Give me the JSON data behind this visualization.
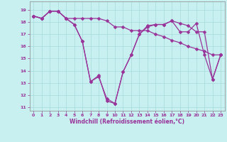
{
  "xlabel": "Windchill (Refroidissement éolien,°C)",
  "background_color": "#c8f0f0",
  "grid_color": "#a8dada",
  "line_color": "#993399",
  "markersize": 2.5,
  "linewidth": 0.9,
  "xlim": [
    -0.5,
    23.5
  ],
  "ylim": [
    10.7,
    19.7
  ],
  "yticks": [
    11,
    12,
    13,
    14,
    15,
    16,
    17,
    18,
    19
  ],
  "xticks": [
    0,
    1,
    2,
    3,
    4,
    5,
    6,
    7,
    8,
    9,
    10,
    11,
    12,
    13,
    14,
    15,
    16,
    17,
    18,
    19,
    20,
    21,
    22,
    23
  ],
  "series1": [
    18.5,
    18.3,
    18.9,
    18.9,
    18.3,
    17.8,
    16.4,
    13.1,
    13.5,
    11.7,
    11.3,
    13.9,
    15.3,
    17.0,
    17.7,
    17.8,
    17.8,
    18.1,
    17.9,
    17.7,
    17.2,
    17.2,
    13.3,
    15.3
  ],
  "series2": [
    18.5,
    18.3,
    18.9,
    18.9,
    18.3,
    17.8,
    16.4,
    13.1,
    13.6,
    11.5,
    11.3,
    13.9,
    15.3,
    17.0,
    17.6,
    17.8,
    17.8,
    18.1,
    17.2,
    17.2,
    17.9,
    15.3,
    13.3,
    15.3
  ],
  "series3": [
    18.5,
    18.3,
    18.9,
    18.9,
    18.3,
    18.3,
    18.3,
    18.3,
    18.3,
    18.1,
    17.6,
    17.6,
    17.3,
    17.3,
    17.3,
    17.0,
    16.8,
    16.5,
    16.3,
    16.0,
    15.8,
    15.6,
    15.3,
    15.3
  ]
}
